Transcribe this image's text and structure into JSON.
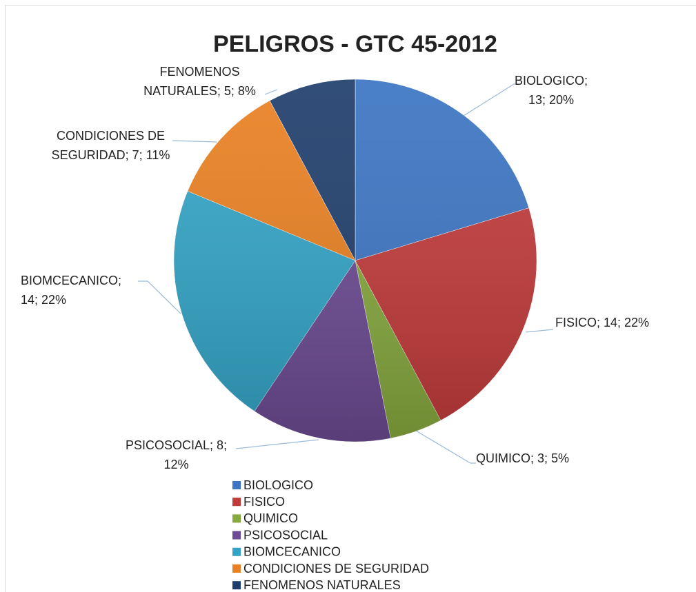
{
  "chart_data": {
    "type": "pie",
    "title": "PELIGROS - GTC 45-2012",
    "categories": [
      "BIOLOGICO",
      "FISICO",
      "QUIMICO",
      "PSICOSOCIAL",
      "BIOMCECANICO",
      "CONDICIONES DE SEGURIDAD",
      "FENOMENOS NATURALES"
    ],
    "values": [
      13,
      14,
      3,
      8,
      14,
      7,
      5
    ],
    "value_labels": [
      "BIOLOGICO; 13; 20%",
      "FISICO; 14; 22%",
      "QUIMICO; 3; 5%",
      "PSICOSOCIAL; 8; 12%",
      "BIOMCECANICO; 14; 22%",
      "CONDICIONES DE SEGURIDAD; 7; 11%",
      "FENOMENOS NATURALES; 5; 8%"
    ],
    "colors": [
      "#3b75c3",
      "#c33a3a",
      "#87aa3e",
      "#6d4b94",
      "#32a5c7",
      "#ea8021",
      "#1f3e6c"
    ],
    "legend": "bottom"
  }
}
